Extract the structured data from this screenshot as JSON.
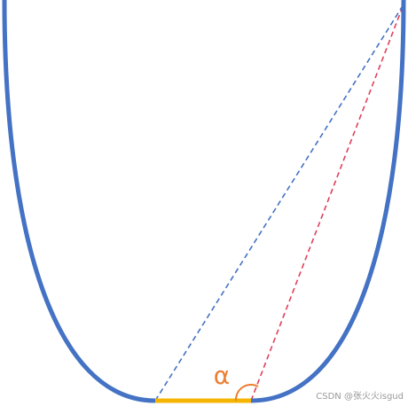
{
  "labels": {
    "angle": "α",
    "watermark": "CSDN @张火火isgud"
  }
}
